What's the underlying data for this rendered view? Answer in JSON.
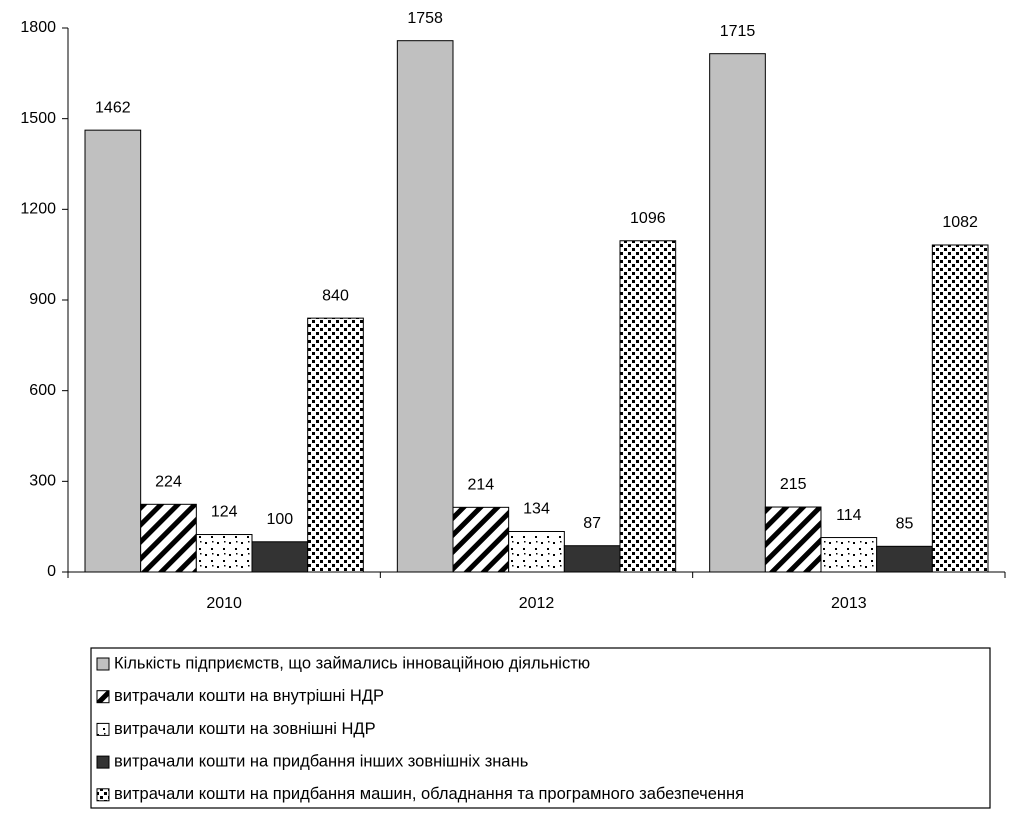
{
  "chart_data": {
    "type": "bar",
    "categories": [
      "2010",
      "2012",
      "2013"
    ],
    "series": [
      {
        "name": "Кількість підприємств, що займались інноваційною діяльністю",
        "color": "#c0c0c0",
        "pattern": "solid",
        "values": [
          1462,
          1758,
          1715
        ]
      },
      {
        "name": "витрачали кошти на внутрішні НДР",
        "color": "#000000",
        "pattern": "hatch",
        "values": [
          224,
          214,
          215
        ]
      },
      {
        "name": "витрачали кошти на зовнішні НДР",
        "color": "#000000",
        "pattern": "sparse-dots",
        "values": [
          124,
          134,
          114
        ]
      },
      {
        "name": "витрачали кошти на придбання інших зовнішніх знань",
        "color": "#333333",
        "pattern": "solid",
        "values": [
          100,
          87,
          85
        ]
      },
      {
        "name": "витрачали кошти на придбання машин, обладнання та програмного забезпечення",
        "color": "#000000",
        "pattern": "dense-dots",
        "values": [
          840,
          1096,
          1082
        ]
      }
    ],
    "ylim": [
      0,
      1800
    ],
    "yticks": [
      0,
      300,
      600,
      900,
      1200,
      1500,
      1800
    ],
    "grid": false,
    "legend": "bottom"
  }
}
